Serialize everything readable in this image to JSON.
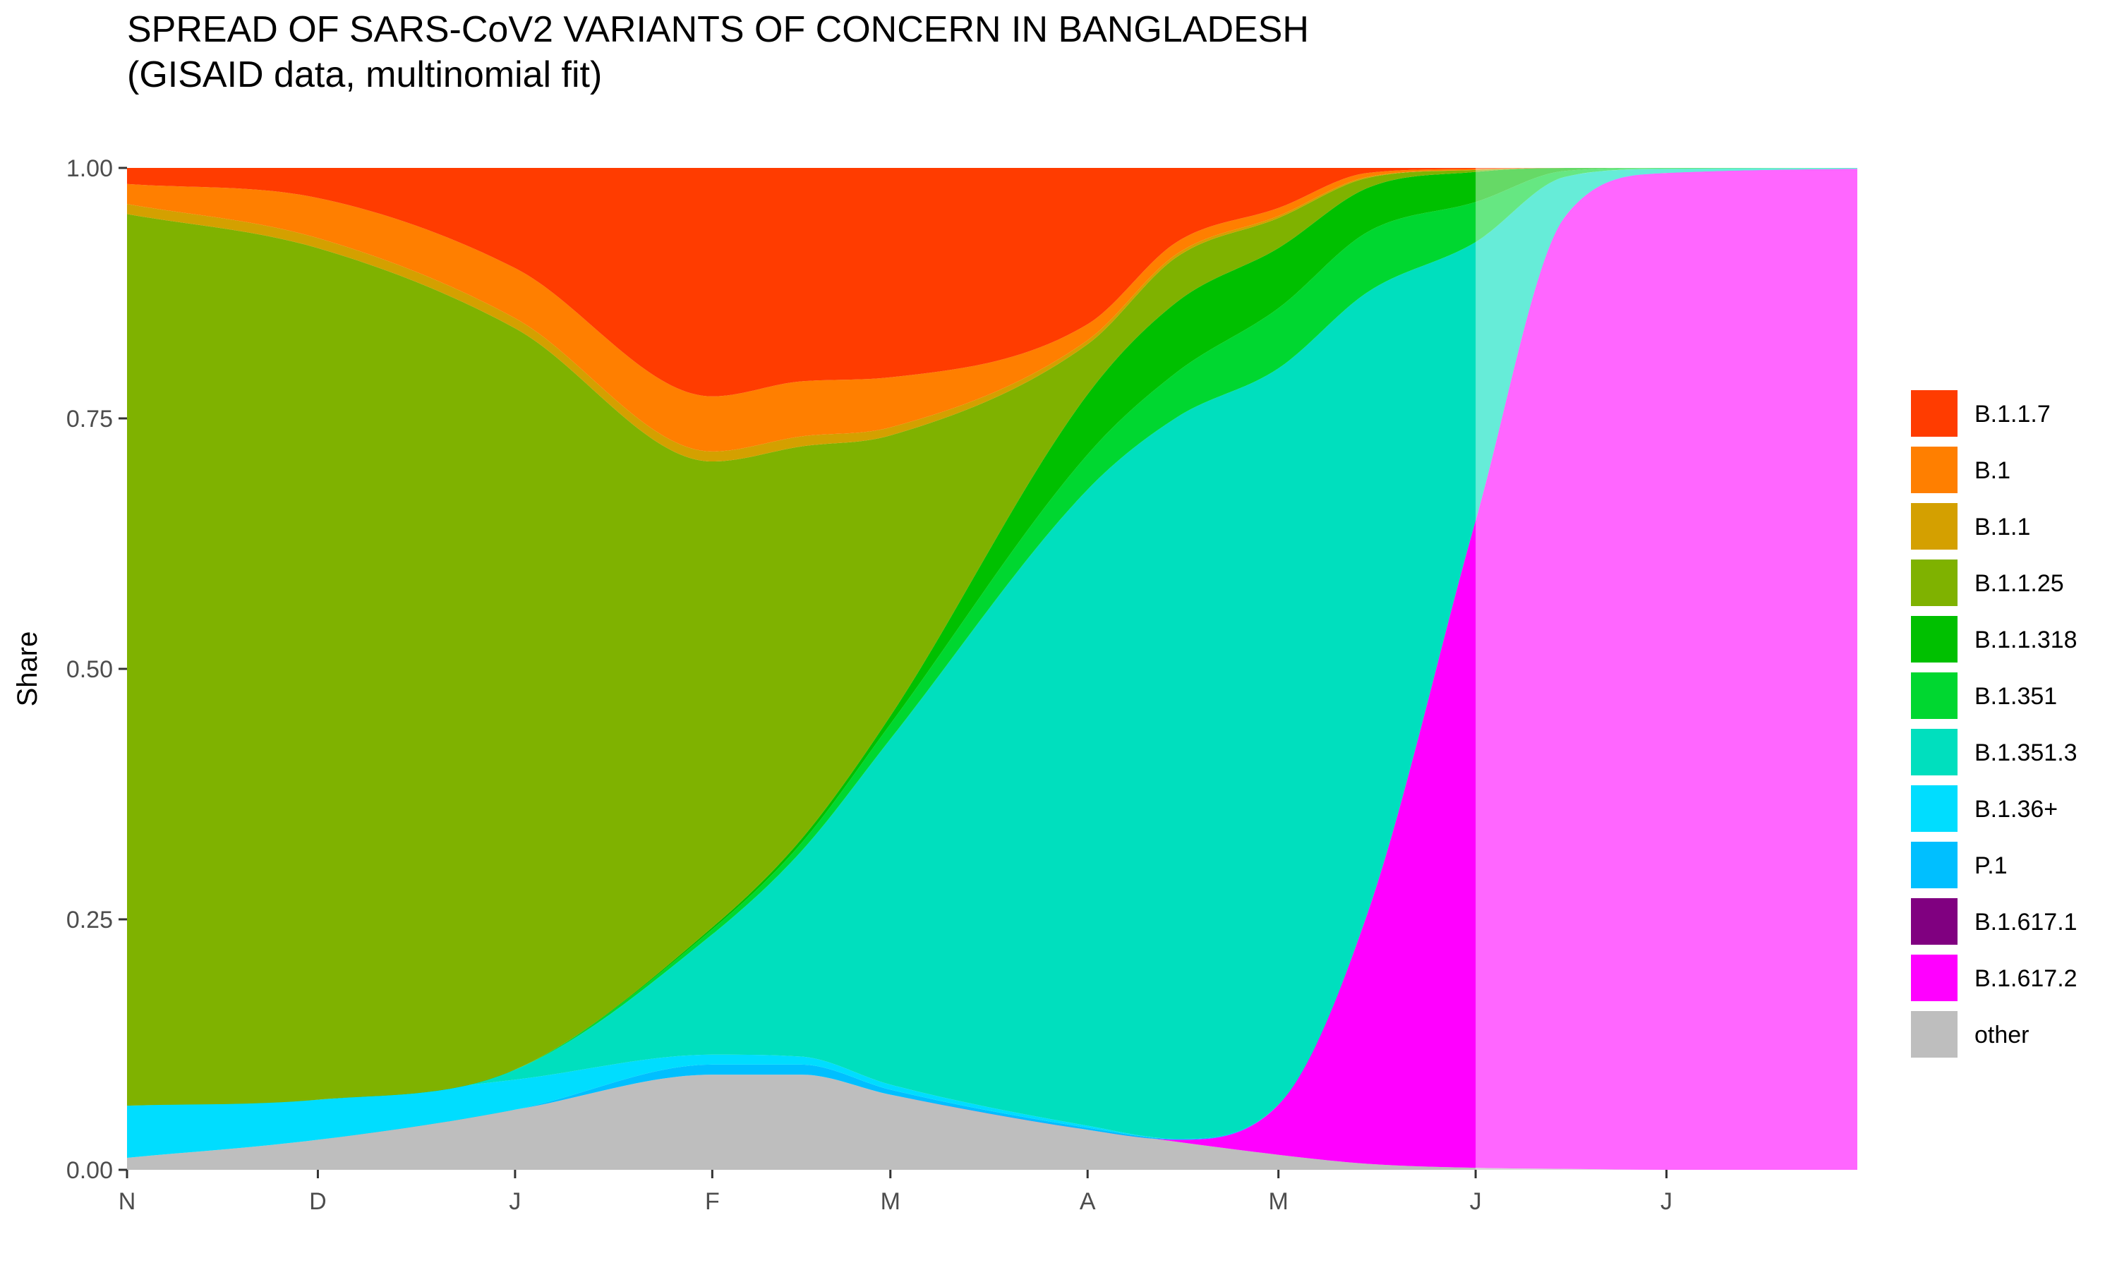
{
  "chart_data": {
    "type": "area",
    "stacked": true,
    "normalized": true,
    "title": "SPREAD OF SARS-CoV2 VARIANTS OF CONCERN IN BANGLADESH",
    "subtitle": "(GISAID data, multinomial fit)",
    "ylabel": "Share",
    "xlabel": "",
    "ylim": [
      0,
      1
    ],
    "yticks": [
      "0.00",
      "0.25",
      "0.50",
      "0.75",
      "1.00"
    ],
    "xtick_labels": [
      "N",
      "D",
      "J",
      "F",
      "M",
      "A",
      "M",
      "J",
      "J"
    ],
    "x": [
      "2020-11-01",
      "2020-12-01",
      "2021-01-01",
      "2021-02-01",
      "2021-02-15",
      "2021-03-01",
      "2021-04-01",
      "2021-04-15",
      "2021-05-01",
      "2021-05-15",
      "2021-06-01",
      "2021-06-15",
      "2021-07-01",
      "2021-07-31"
    ],
    "forecast_start": "2021-06-01",
    "grid": false,
    "legend_position": "right",
    "stack_order_bottom_to_top": [
      "other",
      "B.1.617.2",
      "B.1.617.1",
      "P.1",
      "B.1.36+",
      "B.1.351.3",
      "B.1.351",
      "B.1.1.318",
      "B.1.1.25",
      "B.1.1",
      "B.1",
      "B.1.1.7"
    ],
    "series": [
      {
        "name": "other",
        "color": "#BEBEBE",
        "values": [
          0.012,
          0.03,
          0.06,
          0.095,
          0.095,
          0.075,
          0.04,
          0.028,
          0.015,
          0.006,
          0.002,
          0.001,
          0.0,
          0.0
        ]
      },
      {
        "name": "B.1.617.2",
        "color": "#FF00FF",
        "values": [
          0.0,
          0.0,
          0.0,
          0.0,
          0.0,
          0.0,
          0.0,
          0.002,
          0.05,
          0.25,
          0.646,
          0.95,
          0.995,
          0.999
        ]
      },
      {
        "name": "B.1.617.1",
        "color": "#800080",
        "values": [
          0,
          0,
          0,
          0,
          0,
          0,
          0,
          0,
          0,
          0,
          0,
          0,
          0,
          0
        ]
      },
      {
        "name": "P.1",
        "color": "#00BFFF",
        "values": [
          0.0,
          0.0,
          0.0,
          0.01,
          0.01,
          0.005,
          0.002,
          0.001,
          0.0,
          0.0,
          0.0,
          0.0,
          0.0,
          0.0
        ]
      },
      {
        "name": "B.1.36+",
        "color": "#00DDFF",
        "values": [
          0.052,
          0.04,
          0.03,
          0.01,
          0.008,
          0.005,
          0.002,
          0.0,
          0.0,
          0.0,
          0.0,
          0.0,
          0.0,
          0.0
        ]
      },
      {
        "name": "B.1.351.3",
        "color": "#00DFBE",
        "values": [
          0.0,
          0.0,
          0.01,
          0.12,
          0.205,
          0.345,
          0.635,
          0.72,
          0.735,
          0.62,
          0.278,
          0.04,
          0.004,
          0.001
        ]
      },
      {
        "name": "B.1.351",
        "color": "#00D730",
        "values": [
          0.0,
          0.0,
          0.0,
          0.005,
          0.008,
          0.015,
          0.035,
          0.045,
          0.06,
          0.06,
          0.04,
          0.006,
          0.001,
          0.0
        ]
      },
      {
        "name": "B.1.1.318",
        "color": "#00C000",
        "values": [
          0.0,
          0.0,
          0.0,
          0.002,
          0.004,
          0.008,
          0.06,
          0.07,
          0.06,
          0.044,
          0.03,
          0.003,
          0.0,
          0.0
        ]
      },
      {
        "name": "B.1.1.25",
        "color": "#7FB200",
        "values": [
          0.89,
          0.85,
          0.74,
          0.465,
          0.392,
          0.28,
          0.05,
          0.045,
          0.03,
          0.01,
          0.002,
          0.0,
          0.0,
          0.0
        ]
      },
      {
        "name": "B.1.1",
        "color": "#D4A000",
        "values": [
          0.01,
          0.01,
          0.01,
          0.01,
          0.01,
          0.008,
          0.004,
          0.003,
          0.002,
          0.001,
          0.0,
          0.0,
          0.0,
          0.0
        ]
      },
      {
        "name": "B.1",
        "color": "#FF7F00",
        "values": [
          0.02,
          0.04,
          0.05,
          0.055,
          0.055,
          0.05,
          0.016,
          0.012,
          0.008,
          0.004,
          0.001,
          0.0,
          0.0,
          0.0
        ]
      },
      {
        "name": "B.1.1.7",
        "color": "#FF3C00",
        "values": [
          0.016,
          0.03,
          0.1,
          0.228,
          0.213,
          0.209,
          0.156,
          0.074,
          0.04,
          0.005,
          0.001,
          0.0,
          0.0,
          0.0
        ]
      }
    ],
    "legend_order": [
      "B.1.1.7",
      "B.1",
      "B.1.1",
      "B.1.1.25",
      "B.1.1.318",
      "B.1.351",
      "B.1.351.3",
      "B.1.36+",
      "P.1",
      "B.1.617.1",
      "B.1.617.2",
      "other"
    ]
  }
}
